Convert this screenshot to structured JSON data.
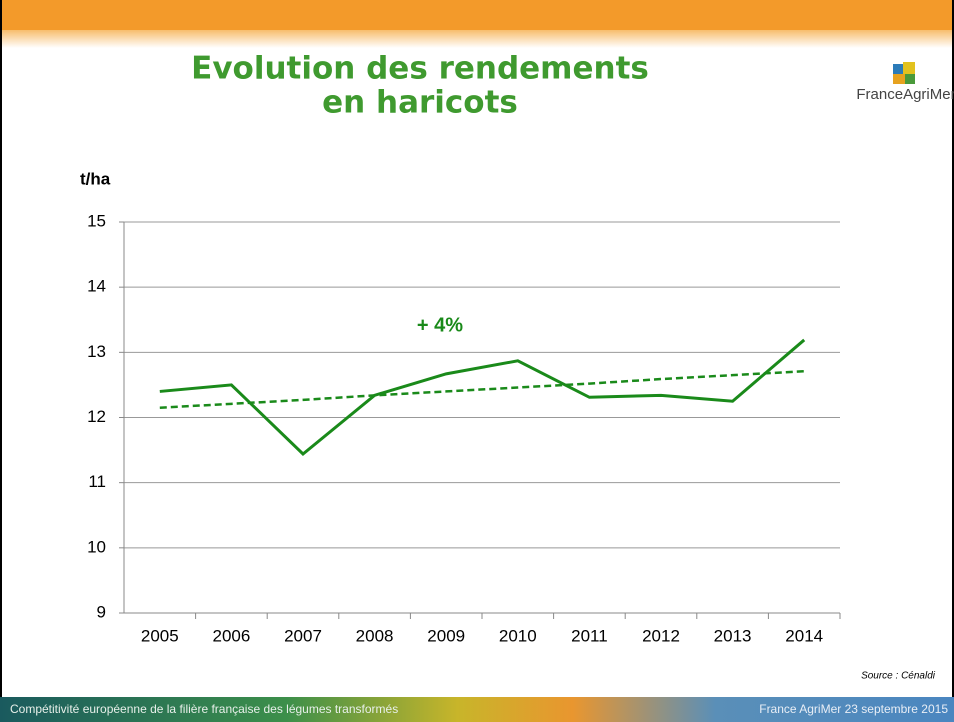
{
  "slide": {
    "title_lines": [
      "Evolution des rendements",
      "en haricots"
    ],
    "logo": "FranceAgriMer",
    "source": "Source : Cénaldi",
    "footer_left": "Compétitivité européenne de la filière française des légumes transformés",
    "footer_right": "France AgriMer 23 septembre 2015"
  },
  "chart_data": {
    "type": "line",
    "y_label": "t/ha",
    "annotation": "+ 4%",
    "categories": [
      "2005",
      "2006",
      "2007",
      "2008",
      "2009",
      "2010",
      "2011",
      "2012",
      "2013",
      "2014"
    ],
    "series": [
      {
        "color": "#1a8a1a",
        "values": [
          12.4,
          12.5,
          11.44,
          12.34,
          12.67,
          12.87,
          12.31,
          12.34,
          12.25,
          13.19
        ]
      },
      {
        "color": "#1a8a1a",
        "dashed": true,
        "values": [
          12.15,
          12.21,
          12.27,
          12.34,
          12.4,
          12.46,
          12.52,
          12.59,
          12.65,
          12.71
        ]
      }
    ],
    "ylim": [
      9,
      15
    ],
    "yticks": [
      9,
      10,
      11,
      12,
      13,
      14,
      15
    ],
    "grid": true
  }
}
